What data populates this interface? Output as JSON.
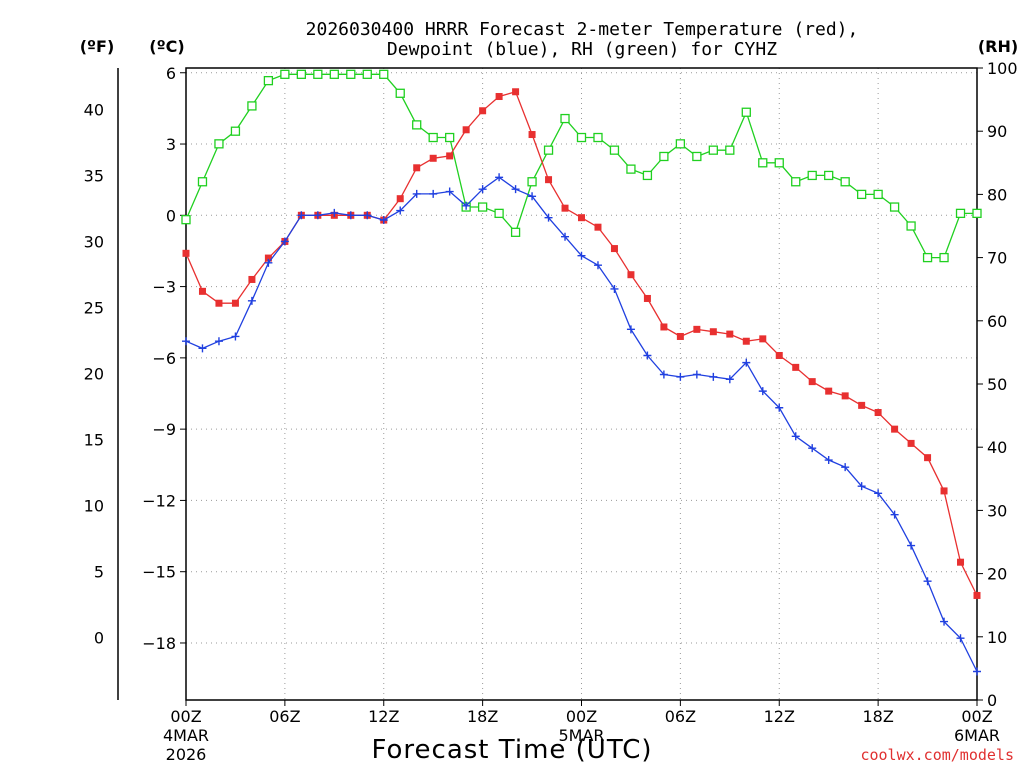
{
  "chart_data": {
    "type": "line",
    "title_line1": "2026030400 HRRR Forecast 2-meter Temperature (red),",
    "title_line2": "Dewpoint (blue), RH (green) for CYHZ",
    "xlabel": "Forecast Time (UTC)",
    "credit": "coolwx.com/models",
    "unit_left_f": "(ºF)",
    "unit_left_c": "(ºC)",
    "unit_right_rh": "(RH)",
    "x_forecast_hours": [
      0,
      1,
      2,
      3,
      4,
      5,
      6,
      7,
      8,
      9,
      10,
      11,
      12,
      13,
      14,
      15,
      16,
      17,
      18,
      19,
      20,
      21,
      22,
      23,
      24,
      25,
      26,
      27,
      28,
      29,
      30,
      31,
      32,
      33,
      34,
      35,
      36,
      37,
      38,
      39,
      40,
      41,
      42,
      43,
      44,
      45,
      46,
      47,
      48
    ],
    "x_range_hours": [
      0,
      48
    ],
    "x_ticks": [
      {
        "hour": 0,
        "label": "00Z",
        "sub1": "4MAR",
        "sub2": "2026"
      },
      {
        "hour": 6,
        "label": "06Z",
        "sub1": "",
        "sub2": ""
      },
      {
        "hour": 12,
        "label": "12Z",
        "sub1": "",
        "sub2": ""
      },
      {
        "hour": 18,
        "label": "18Z",
        "sub1": "",
        "sub2": ""
      },
      {
        "hour": 24,
        "label": "00Z",
        "sub1": "5MAR",
        "sub2": ""
      },
      {
        "hour": 30,
        "label": "06Z",
        "sub1": "",
        "sub2": ""
      },
      {
        "hour": 36,
        "label": "12Z",
        "sub1": "",
        "sub2": ""
      },
      {
        "hour": 42,
        "label": "18Z",
        "sub1": "",
        "sub2": ""
      },
      {
        "hour": 48,
        "label": "00Z",
        "sub1": "6MAR",
        "sub2": ""
      }
    ],
    "y_celsius_range": [
      -20.4,
      6.2
    ],
    "y_celsius_ticks": [
      {
        "value": 6,
        "label": "6"
      },
      {
        "value": 3,
        "label": "3"
      },
      {
        "value": 0,
        "label": "0"
      },
      {
        "value": -3,
        "label": "−3"
      },
      {
        "value": -6,
        "label": "−6"
      },
      {
        "value": -9,
        "label": "−9"
      },
      {
        "value": -12,
        "label": "−12"
      },
      {
        "value": -15,
        "label": "−15"
      },
      {
        "value": -18,
        "label": "−18"
      }
    ],
    "y_fahrenheit_ticks": [
      {
        "value": 40,
        "label": "40"
      },
      {
        "value": 35,
        "label": "35"
      },
      {
        "value": 30,
        "label": "30"
      },
      {
        "value": 25,
        "label": "25"
      },
      {
        "value": 20,
        "label": "20"
      },
      {
        "value": 15,
        "label": "15"
      },
      {
        "value": 10,
        "label": "10"
      },
      {
        "value": 5,
        "label": "5"
      },
      {
        "value": 0,
        "label": "0"
      }
    ],
    "y_rh_range": [
      0,
      100
    ],
    "y_rh_ticks": [
      {
        "value": 100,
        "label": "100"
      },
      {
        "value": 90,
        "label": "90"
      },
      {
        "value": 80,
        "label": "80"
      },
      {
        "value": 70,
        "label": "70"
      },
      {
        "value": 60,
        "label": "60"
      },
      {
        "value": 50,
        "label": "50"
      },
      {
        "value": 40,
        "label": "40"
      },
      {
        "value": 30,
        "label": "30"
      },
      {
        "value": 20,
        "label": "20"
      },
      {
        "value": 10,
        "label": "10"
      },
      {
        "value": 0,
        "label": "0"
      }
    ],
    "grid": true,
    "series": [
      {
        "key": "temperature",
        "color": "#e83030",
        "marker": "filled-square",
        "axis": "celsius",
        "values": [
          -1.6,
          -3.2,
          -3.7,
          -3.7,
          -2.7,
          -1.8,
          -1.1,
          0.0,
          0.0,
          0.0,
          0.0,
          0.0,
          -0.2,
          0.7,
          2.0,
          2.4,
          2.5,
          3.6,
          4.4,
          5.0,
          5.2,
          3.4,
          1.5,
          0.3,
          -0.1,
          -0.5,
          -1.4,
          -2.5,
          -3.5,
          -4.7,
          -5.1,
          -4.8,
          -4.9,
          -5.0,
          -5.3,
          -5.2,
          -5.9,
          -6.4,
          -7.0,
          -7.4,
          -7.6,
          -8.0,
          -8.3,
          -9.0,
          -9.6,
          -10.2,
          -11.6,
          -14.6,
          -16.0
        ]
      },
      {
        "key": "dewpoint",
        "color": "#2040e0",
        "marker": "plus",
        "axis": "celsius",
        "values": [
          -5.3,
          -5.6,
          -5.3,
          -5.1,
          -3.6,
          -2.0,
          -1.1,
          0.0,
          0.0,
          0.1,
          0.0,
          0.0,
          -0.2,
          0.2,
          0.9,
          0.9,
          1.0,
          0.4,
          1.1,
          1.6,
          1.1,
          0.8,
          -0.1,
          -0.9,
          -1.7,
          -2.1,
          -3.1,
          -4.8,
          -5.9,
          -6.7,
          -6.8,
          -6.7,
          -6.8,
          -6.9,
          -6.2,
          -7.4,
          -8.1,
          -9.3,
          -9.8,
          -10.3,
          -10.6,
          -11.4,
          -11.7,
          -12.6,
          -13.9,
          -15.4,
          -17.1,
          -17.8,
          -19.2
        ]
      },
      {
        "key": "rh",
        "color": "#20d020",
        "marker": "open-square",
        "axis": "rh",
        "values": [
          76,
          82,
          88,
          90,
          94,
          98,
          99,
          99,
          99,
          99,
          99,
          99,
          99,
          96,
          91,
          89,
          89,
          78,
          78,
          77,
          74,
          82,
          87,
          92,
          89,
          89,
          87,
          84,
          83,
          86,
          88,
          86,
          87,
          87,
          93,
          85,
          85,
          82,
          83,
          83,
          82,
          80,
          80,
          78,
          75,
          70,
          70,
          77,
          77
        ]
      }
    ]
  }
}
